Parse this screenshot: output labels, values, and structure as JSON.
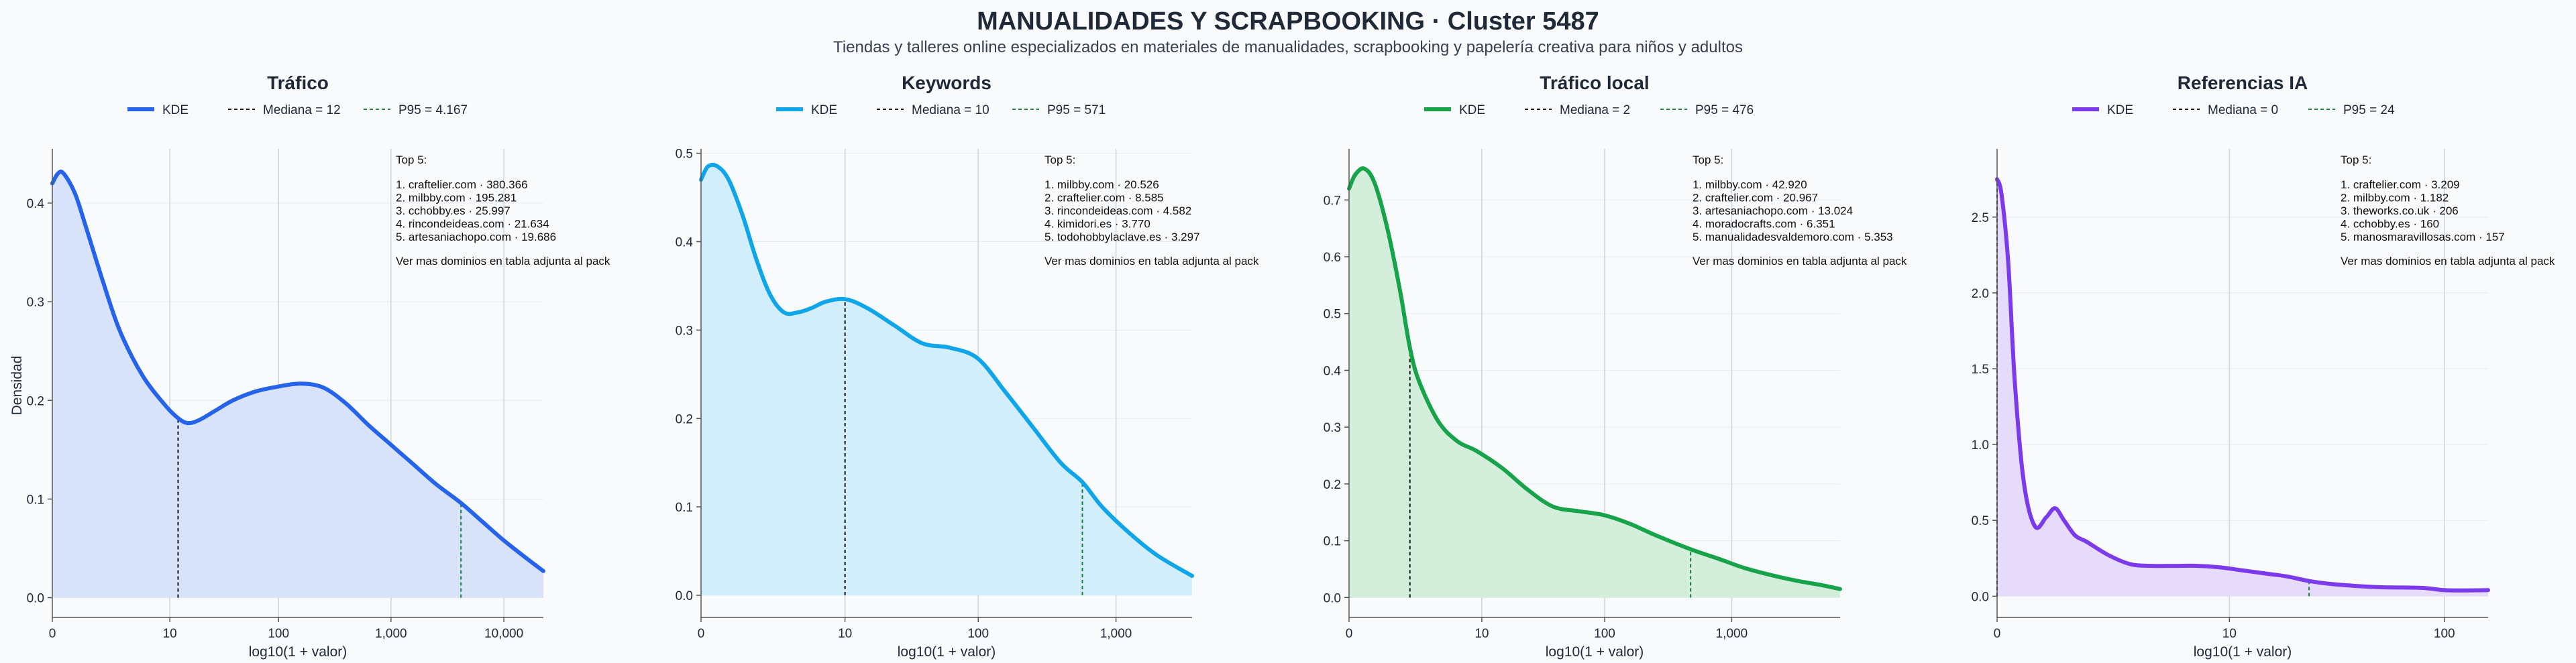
{
  "title": "MANUALIDADES Y SCRAPBOOKING · Cluster 5487",
  "subtitle": "Tiendas y talleres online especializados en materiales de manualidades, scrapbooking y papelería creativa para niños y adultos",
  "ylabel": "Densidad",
  "xlabel": "log10(1 + valor)",
  "legend_labels": {
    "kde": "KDE"
  },
  "top_header": "Top 5:",
  "top_footer": "Ver mas dominios en tabla adjunta al pack",
  "colors": {
    "median_line": "#111111",
    "p95_line": "#15803d",
    "grid": "#cfd4da",
    "axis": "#555555"
  },
  "chart_data": [
    {
      "type": "area",
      "title": "Tráfico",
      "color": "#2563eb",
      "fill": "#d8e3fa",
      "xlim": [
        0,
        4.35
      ],
      "ylim": [
        -0.02,
        0.455
      ],
      "yticks": [
        0.0,
        0.1,
        0.2,
        0.3,
        0.4
      ],
      "ytick_labels": [
        "0.0",
        "0.1",
        "0.2",
        "0.3",
        "0.4"
      ],
      "xticks": [
        0,
        1.041,
        2.004,
        3.0,
        4.0
      ],
      "xtick_labels": [
        "0",
        "10",
        "100",
        "1,000",
        "10,000"
      ],
      "median_label": "Mediana = 12",
      "p95_label": "P95 = 4.167",
      "median_x": 1.114,
      "p95_x": 3.62,
      "kde_x": [
        0,
        0.05,
        0.1,
        0.2,
        0.3,
        0.45,
        0.6,
        0.8,
        1.0,
        1.114,
        1.2,
        1.3,
        1.45,
        1.6,
        1.8,
        2.0,
        2.2,
        2.4,
        2.6,
        2.8,
        3.0,
        3.2,
        3.4,
        3.62,
        3.8,
        4.0,
        4.2,
        4.35
      ],
      "kde_y": [
        0.42,
        0.43,
        0.43,
        0.41,
        0.375,
        0.32,
        0.27,
        0.225,
        0.195,
        0.182,
        0.177,
        0.18,
        0.19,
        0.2,
        0.209,
        0.214,
        0.217,
        0.213,
        0.197,
        0.175,
        0.155,
        0.135,
        0.115,
        0.096,
        0.078,
        0.058,
        0.04,
        0.027
      ],
      "top5": [
        "1. craftelier.com · 380.366",
        "2. milbby.com · 195.281",
        "3. cchobby.es · 25.997",
        "4. rincondeideas.com · 21.634",
        "5. artesaniachopo.com · 19.686"
      ]
    },
    {
      "type": "area",
      "title": "Keywords",
      "color": "#0ea5e9",
      "fill": "#d2eefb",
      "xlim": [
        0,
        3.55
      ],
      "ylim": [
        -0.025,
        0.505
      ],
      "yticks": [
        0.0,
        0.1,
        0.2,
        0.3,
        0.4,
        0.5
      ],
      "ytick_labels": [
        "0.0",
        "0.1",
        "0.2",
        "0.3",
        "0.4",
        "0.5"
      ],
      "xticks": [
        0,
        1.041,
        2.004,
        3.0
      ],
      "xtick_labels": [
        "0",
        "10",
        "100",
        "1,000"
      ],
      "median_label": "Mediana = 10",
      "p95_label": "P95 = 571",
      "median_x": 1.041,
      "p95_x": 2.757,
      "kde_x": [
        0,
        0.05,
        0.12,
        0.2,
        0.3,
        0.4,
        0.5,
        0.6,
        0.7,
        0.8,
        0.9,
        1.041,
        1.2,
        1.4,
        1.6,
        1.8,
        2.0,
        2.2,
        2.4,
        2.6,
        2.757,
        2.9,
        3.1,
        3.3,
        3.55
      ],
      "kde_y": [
        0.47,
        0.485,
        0.485,
        0.47,
        0.43,
        0.38,
        0.34,
        0.32,
        0.32,
        0.325,
        0.332,
        0.335,
        0.325,
        0.305,
        0.285,
        0.28,
        0.268,
        0.23,
        0.19,
        0.15,
        0.128,
        0.1,
        0.07,
        0.045,
        0.022
      ],
      "top5": [
        "1. milbby.com · 20.526",
        "2. craftelier.com · 8.585",
        "3. rincondeideas.com · 4.582",
        "4. kimidori.es · 3.770",
        "5. todohobbylaclave.es · 3.297"
      ]
    },
    {
      "type": "area",
      "title": "Tráfico local",
      "color": "#16a34a",
      "fill": "#d3eedb",
      "xlim": [
        0,
        3.85
      ],
      "ylim": [
        -0.035,
        0.79
      ],
      "yticks": [
        0.0,
        0.1,
        0.2,
        0.3,
        0.4,
        0.5,
        0.6,
        0.7
      ],
      "ytick_labels": [
        "0.0",
        "0.1",
        "0.2",
        "0.3",
        "0.4",
        "0.5",
        "0.6",
        "0.7"
      ],
      "xticks": [
        0,
        1.041,
        2.004,
        3.0
      ],
      "xtick_labels": [
        "0",
        "10",
        "100",
        "1,000"
      ],
      "median_label": "Mediana = 2",
      "p95_label": "P95 = 476",
      "median_x": 0.477,
      "p95_x": 2.678,
      "kde_x": [
        0,
        0.05,
        0.12,
        0.2,
        0.3,
        0.4,
        0.477,
        0.55,
        0.7,
        0.85,
        1.0,
        1.2,
        1.4,
        1.6,
        1.8,
        2.0,
        2.2,
        2.4,
        2.678,
        2.9,
        3.1,
        3.3,
        3.5,
        3.7,
        3.85
      ],
      "kde_y": [
        0.72,
        0.745,
        0.755,
        0.73,
        0.65,
        0.54,
        0.44,
        0.38,
        0.31,
        0.275,
        0.258,
        0.228,
        0.19,
        0.16,
        0.152,
        0.145,
        0.13,
        0.11,
        0.085,
        0.068,
        0.052,
        0.04,
        0.03,
        0.022,
        0.015
      ],
      "top5": [
        "1. milbby.com · 42.920",
        "2. craftelier.com · 20.967",
        "3. artesaniachopo.com · 13.024",
        "4. moradocrafts.com · 6.351",
        "5. manualidadesvaldemoro.com · 5.353"
      ]
    },
    {
      "type": "area",
      "title": "Referencias IA",
      "color": "#7c3aed",
      "fill": "#e6dbfa",
      "xlim": [
        0,
        2.2
      ],
      "ylim": [
        -0.14,
        2.95
      ],
      "yticks": [
        0.0,
        0.5,
        1.0,
        1.5,
        2.0,
        2.5
      ],
      "ytick_labels": [
        "0.0",
        "0.5",
        "1.0",
        "1.5",
        "2.0",
        "2.5"
      ],
      "xticks": [
        0,
        1.041,
        2.004
      ],
      "xtick_labels": [
        "0",
        "10",
        "100"
      ],
      "median_label": "Mediana = 0",
      "p95_label": "P95 = 24",
      "median_x": 0.0,
      "p95_x": 1.398,
      "kde_x": [
        0,
        0.02,
        0.05,
        0.08,
        0.12,
        0.17,
        0.22,
        0.26,
        0.3,
        0.35,
        0.4,
        0.5,
        0.6,
        0.7,
        0.8,
        0.9,
        1.0,
        1.1,
        1.2,
        1.3,
        1.398,
        1.5,
        1.7,
        1.9,
        2.0,
        2.1,
        2.2
      ],
      "kde_y": [
        2.75,
        2.65,
        2.2,
        1.4,
        0.75,
        0.46,
        0.52,
        0.58,
        0.5,
        0.4,
        0.36,
        0.27,
        0.21,
        0.2,
        0.2,
        0.2,
        0.19,
        0.17,
        0.15,
        0.13,
        0.1,
        0.08,
        0.06,
        0.055,
        0.04,
        0.038,
        0.04
      ],
      "top5": [
        "1. craftelier.com · 3.209",
        "2. milbby.com · 1.182",
        "3. theworks.co.uk · 206",
        "4. cchobby.es · 160",
        "5. manosmaravillosas.com · 157"
      ]
    }
  ]
}
